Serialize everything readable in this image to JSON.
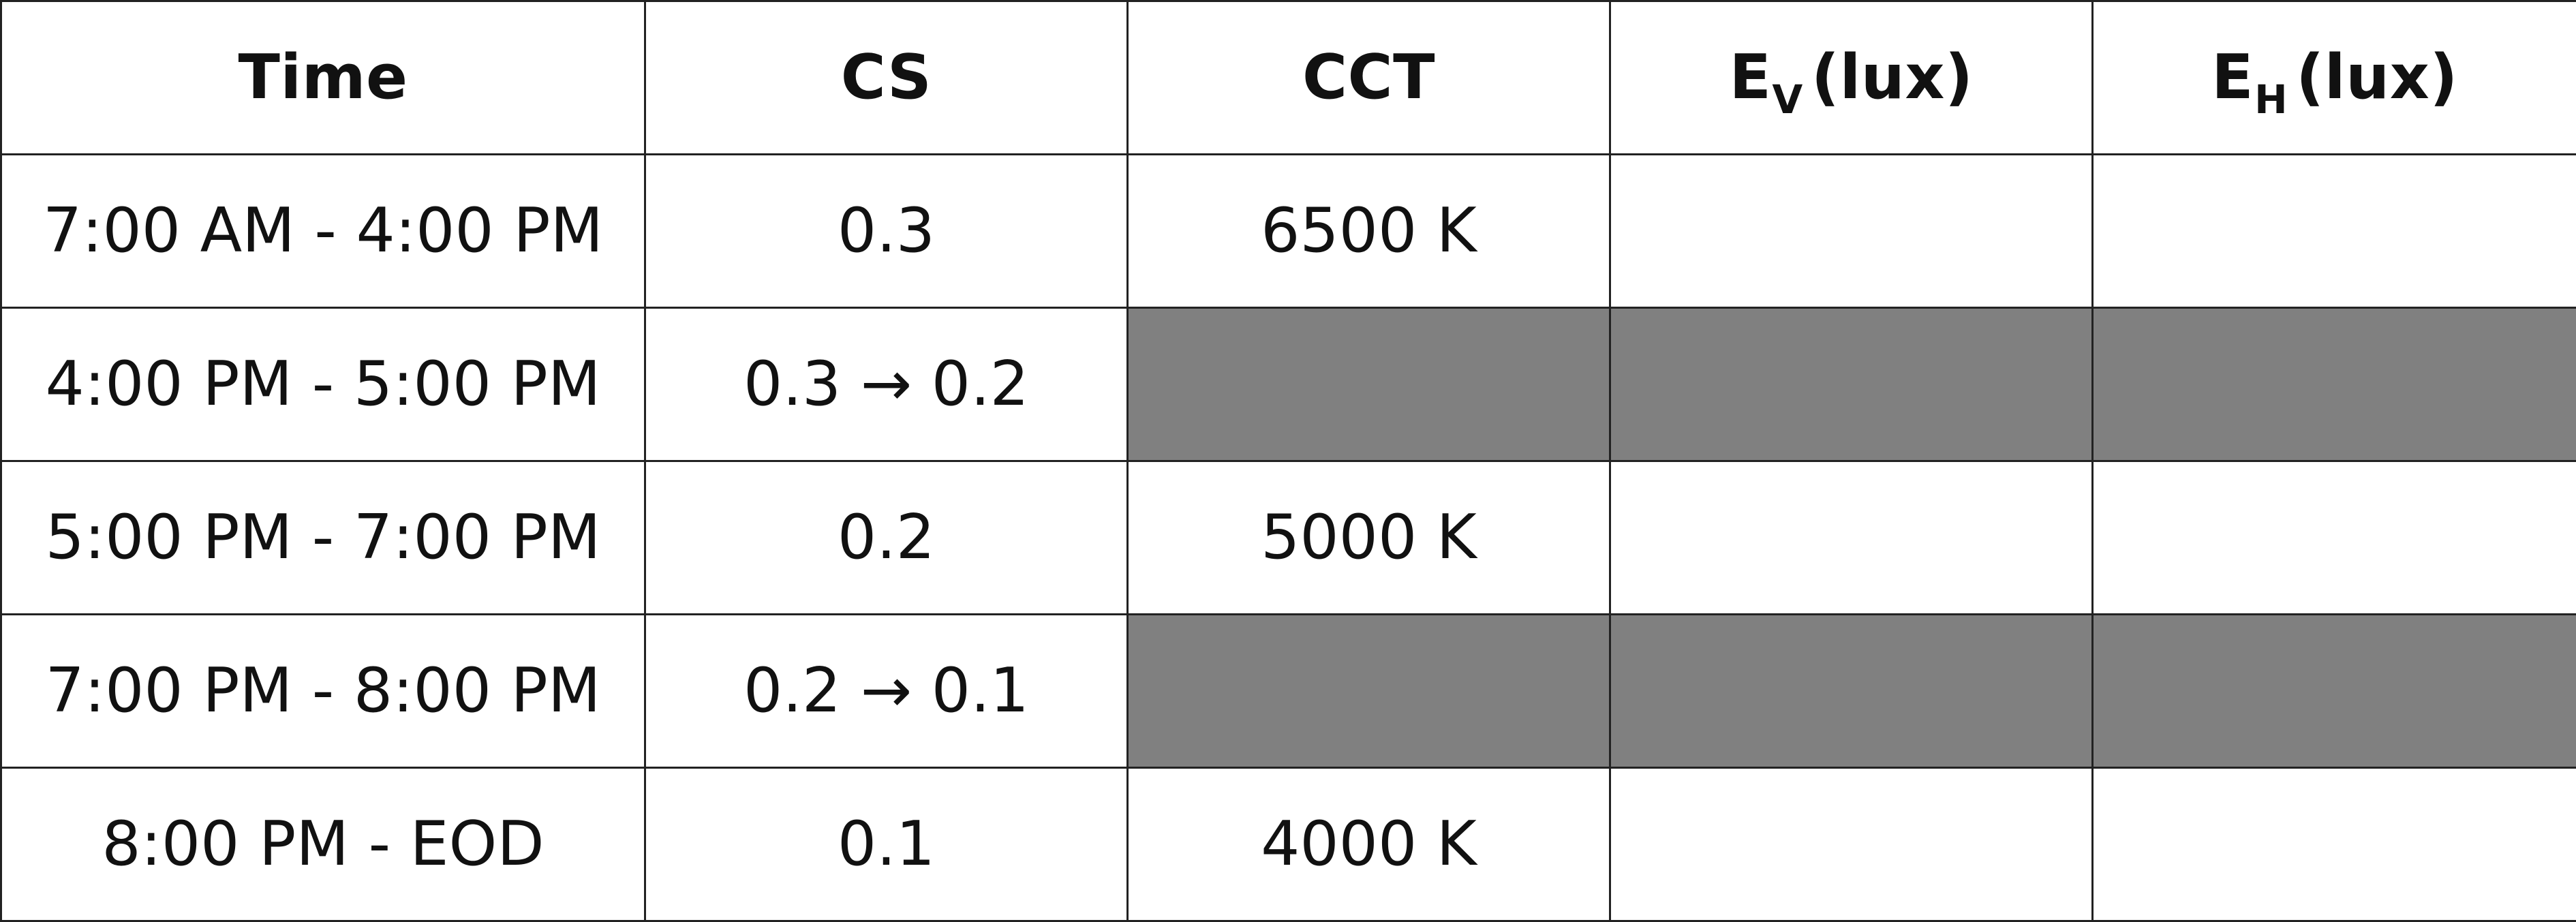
{
  "table": {
    "headers": [
      {
        "main": "Time",
        "sub": "",
        "rest": ""
      },
      {
        "main": "CS",
        "sub": "",
        "rest": ""
      },
      {
        "main": "CCT",
        "sub": "",
        "rest": ""
      },
      {
        "main": "E",
        "sub": "V",
        "rest": "(lux)"
      },
      {
        "main": "E",
        "sub": "H",
        "rest": "(lux)"
      }
    ],
    "rows": [
      [
        "7:00 AM - 4:00 PM",
        "0.3",
        "6500 K",
        "",
        ""
      ],
      [
        "4:00 PM - 5:00 PM",
        "0.3 → 0.2",
        "",
        "",
        ""
      ],
      [
        "5:00 PM - 7:00 PM",
        "0.2",
        "5000 K",
        "",
        ""
      ],
      [
        "7:00 PM - 8:00 PM",
        "0.2 → 0.1",
        "",
        "",
        ""
      ],
      [
        "8:00 PM - EOD",
        "0.1",
        "4000 K",
        "",
        ""
      ]
    ],
    "shaded_rows": [
      1,
      3
    ],
    "shade_color": "#808080"
  }
}
